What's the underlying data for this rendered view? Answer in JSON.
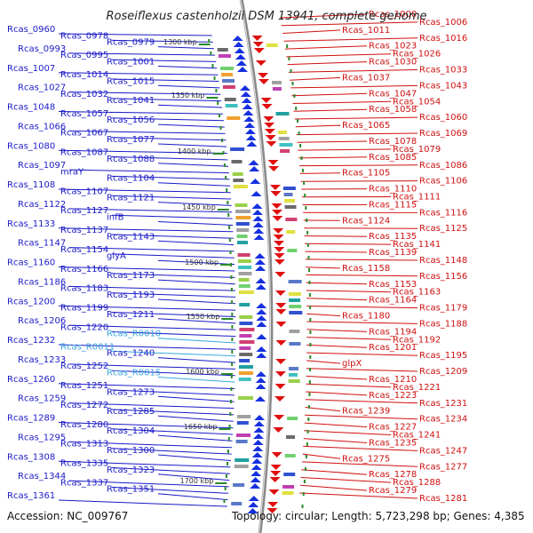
{
  "title": "Roseiflexus castenholzii DSM 13941, complete genome",
  "accession": "Accession: NC_009767",
  "topology": "Topology: circular; Length: 5,723,298 bp; Genes: 4,385",
  "colors": {
    "left_gene": "#1a1ac8",
    "right_gene": "#d01010",
    "rna": "#3aa7e0",
    "backbone": "#888888",
    "tick": "#2a8a2a"
  },
  "kbp_markers": [
    {
      "label": "1300 kbp"
    },
    {
      "label": "1350 kbp"
    },
    {
      "label": "1400 kbp"
    },
    {
      "label": "1450 kbp"
    },
    {
      "label": "1500 kbp"
    },
    {
      "label": "1550 kbp"
    },
    {
      "label": "1600 kbp"
    },
    {
      "label": "1650 kbp"
    },
    {
      "label": "1700 kbp"
    }
  ],
  "left_labels": [
    {
      "text": "Rcas_0960"
    },
    {
      "text": "Rcas_0978"
    },
    {
      "text": "Rcas_0979"
    },
    {
      "text": "Rcas_0993"
    },
    {
      "text": "Rcas_0995"
    },
    {
      "text": "Rcas_1001"
    },
    {
      "text": "Rcas_1007"
    },
    {
      "text": "Rcas_1014"
    },
    {
      "text": "Rcas_1015"
    },
    {
      "text": "Rcas_1027"
    },
    {
      "text": "Rcas_1032"
    },
    {
      "text": "Rcas_1041"
    },
    {
      "text": "Rcas_1048"
    },
    {
      "text": "Rcas_1057"
    },
    {
      "text": "Rcas_1056"
    },
    {
      "text": "Rcas_1066"
    },
    {
      "text": "Rcas_1067"
    },
    {
      "text": "Rcas_1077"
    },
    {
      "text": "Rcas_1080"
    },
    {
      "text": "Rcas_1087"
    },
    {
      "text": "Rcas_1088"
    },
    {
      "text": "Rcas_1097"
    },
    {
      "text": "mraY"
    },
    {
      "text": "Rcas_1104"
    },
    {
      "text": "Rcas_1108"
    },
    {
      "text": "Rcas_1107"
    },
    {
      "text": "Rcas_1121"
    },
    {
      "text": "Rcas_1122"
    },
    {
      "text": "Rcas_1127"
    },
    {
      "text": "infB"
    },
    {
      "text": "Rcas_1133"
    },
    {
      "text": "Rcas_1137"
    },
    {
      "text": "Rcas_1143"
    },
    {
      "text": "Rcas_1147"
    },
    {
      "text": "Rcas_1154"
    },
    {
      "text": "glyA"
    },
    {
      "text": "Rcas_1160"
    },
    {
      "text": "Rcas_1166"
    },
    {
      "text": "Rcas_1173"
    },
    {
      "text": "Rcas_1186"
    },
    {
      "text": "Rcas_1183"
    },
    {
      "text": "Rcas_1193"
    },
    {
      "text": "Rcas_1200"
    },
    {
      "text": "Rcas_1199"
    },
    {
      "text": "Rcas_1211"
    },
    {
      "text": "Rcas_1206"
    },
    {
      "text": "Rcas_1220"
    },
    {
      "text": "Rcas_R0010"
    },
    {
      "text": "Rcas_1232"
    },
    {
      "text": "Rcas_R0011"
    },
    {
      "text": "Rcas_1240"
    },
    {
      "text": "Rcas_1233"
    },
    {
      "text": "Rcas_1252"
    },
    {
      "text": "Rcas_R0015"
    },
    {
      "text": "Rcas_1260"
    },
    {
      "text": "Rcas_1251"
    },
    {
      "text": "Rcas_1273"
    },
    {
      "text": "Rcas_1259"
    },
    {
      "text": "Rcas_1272"
    },
    {
      "text": "Rcas_1285"
    },
    {
      "text": "Rcas_1289"
    },
    {
      "text": "Rcas_1280"
    },
    {
      "text": "Rcas_1304"
    },
    {
      "text": "Rcas_1295"
    },
    {
      "text": "Rcas_1313"
    },
    {
      "text": "Rcas_1300"
    },
    {
      "text": "Rcas_1308"
    },
    {
      "text": "Rcas_1335"
    },
    {
      "text": "Rcas_1323"
    },
    {
      "text": "Rcas_1344"
    },
    {
      "text": "Rcas_1337"
    },
    {
      "text": "Rcas_1351"
    },
    {
      "text": "Rcas_1361"
    }
  ],
  "right_labels": [
    {
      "text": "Rcas_1000"
    },
    {
      "text": "Rcas_1006"
    },
    {
      "text": "Rcas_1011"
    },
    {
      "text": "Rcas_1016"
    },
    {
      "text": "Rcas_1023"
    },
    {
      "text": "Rcas_1026"
    },
    {
      "text": "Rcas_1030"
    },
    {
      "text": "Rcas_1033"
    },
    {
      "text": "Rcas_1037"
    },
    {
      "text": "Rcas_1043"
    },
    {
      "text": "Rcas_1047"
    },
    {
      "text": "Rcas_1054"
    },
    {
      "text": "Rcas_1058"
    },
    {
      "text": "Rcas_1060"
    },
    {
      "text": "Rcas_1065"
    },
    {
      "text": "Rcas_1069"
    },
    {
      "text": "Rcas_1078"
    },
    {
      "text": "Rcas_1079"
    },
    {
      "text": "Rcas_1085"
    },
    {
      "text": "Rcas_1086"
    },
    {
      "text": "Rcas_1105"
    },
    {
      "text": "Rcas_1106"
    },
    {
      "text": "Rcas_1110"
    },
    {
      "text": "Rcas_1111"
    },
    {
      "text": "Rcas_1115"
    },
    {
      "text": "Rcas_1116"
    },
    {
      "text": "Rcas_1124"
    },
    {
      "text": "Rcas_1125"
    },
    {
      "text": "Rcas_1135"
    },
    {
      "text": "Rcas_1141"
    },
    {
      "text": "Rcas_1139"
    },
    {
      "text": "Rcas_1148"
    },
    {
      "text": "Rcas_1158"
    },
    {
      "text": "Rcas_1156"
    },
    {
      "text": "Rcas_1153"
    },
    {
      "text": "Rcas_1163"
    },
    {
      "text": "Rcas_1164"
    },
    {
      "text": "Rcas_1179"
    },
    {
      "text": "Rcas_1180"
    },
    {
      "text": "Rcas_1188"
    },
    {
      "text": "Rcas_1194"
    },
    {
      "text": "Rcas_1192"
    },
    {
      "text": "Rcas_1201"
    },
    {
      "text": "Rcas_1195"
    },
    {
      "text": "glpX"
    },
    {
      "text": "Rcas_1209"
    },
    {
      "text": "Rcas_1210"
    },
    {
      "text": "Rcas_1221"
    },
    {
      "text": "Rcas_1223"
    },
    {
      "text": "Rcas_1231"
    },
    {
      "text": "Rcas_1239"
    },
    {
      "text": "Rcas_1234"
    },
    {
      "text": "Rcas_1227"
    },
    {
      "text": "Rcas_1241"
    },
    {
      "text": "Rcas_1235"
    },
    {
      "text": "Rcas_1247"
    },
    {
      "text": "Rcas_1275"
    },
    {
      "text": "Rcas_1277"
    },
    {
      "text": "Rcas_1278"
    },
    {
      "text": "Rcas_1288"
    },
    {
      "text": "Rcas_1279"
    },
    {
      "text": "Rcas_1281"
    }
  ]
}
